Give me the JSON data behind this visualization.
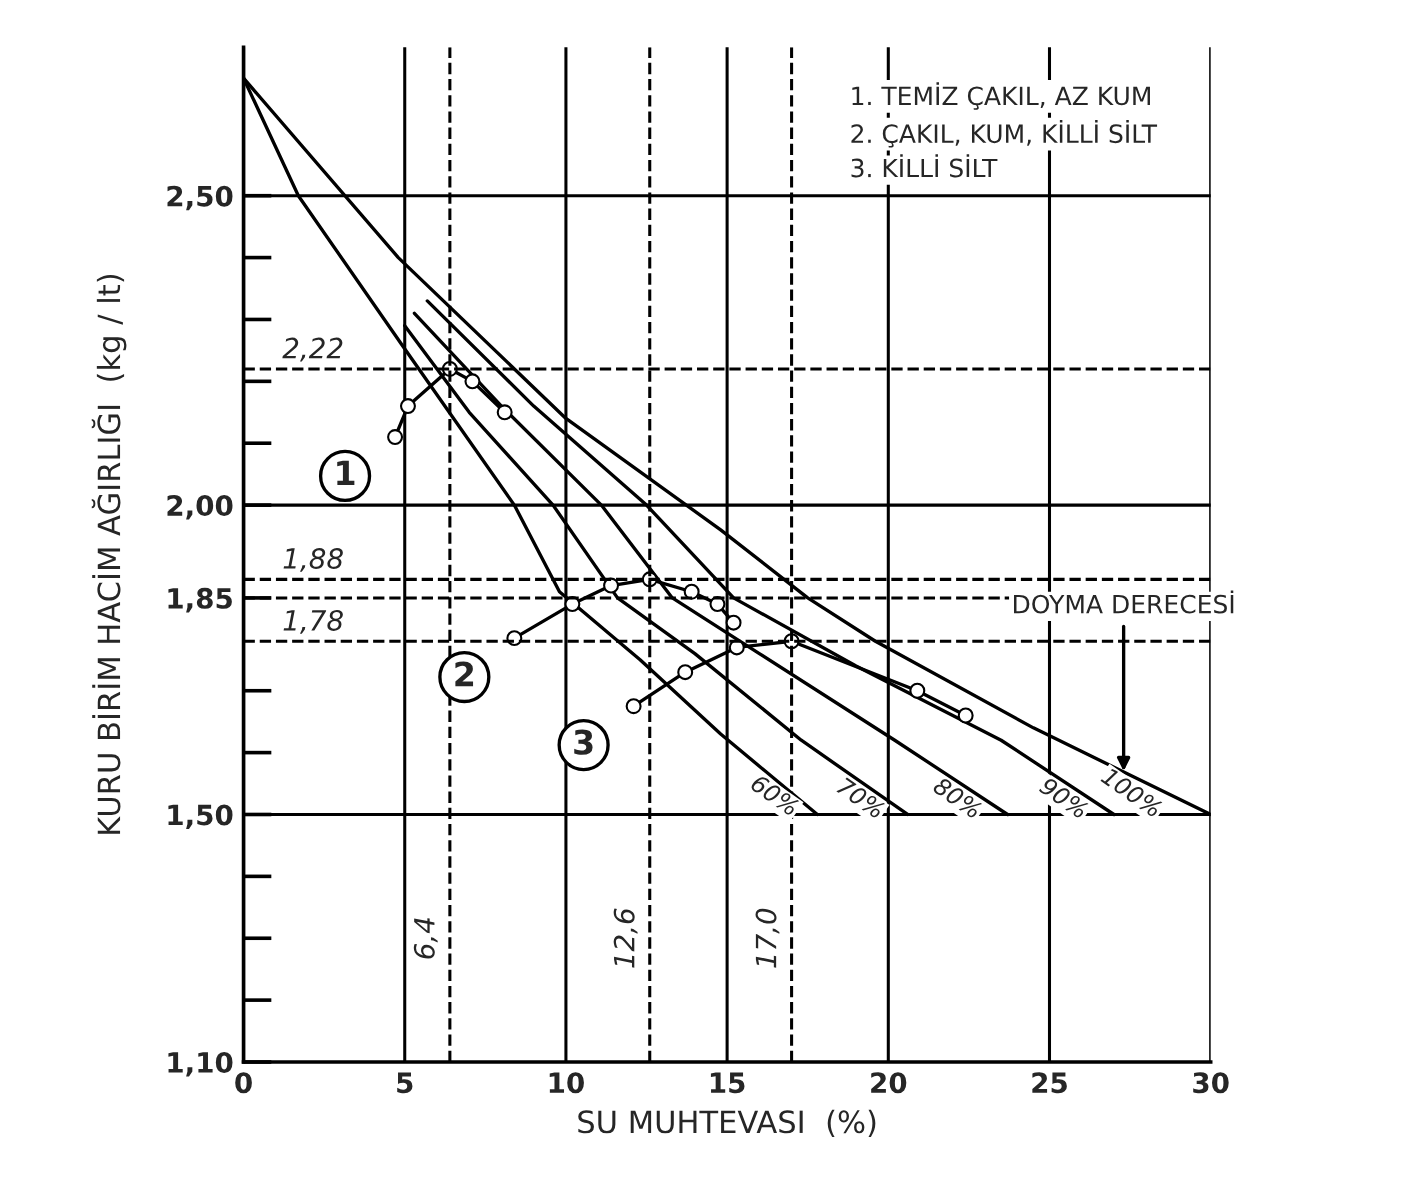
{
  "chart_data": {
    "type": "line",
    "xlabel": "SU MUHTEVASI  (%)",
    "ylabel": "KURU BİRİM HACİM AĞIRLIĞI  (kg / lt)",
    "xlim": [
      0,
      30
    ],
    "xticks": [
      0,
      5,
      10,
      15,
      20,
      25,
      30
    ],
    "ylim": [
      1.1,
      2.74
    ],
    "yticks": [
      {
        "value": 1.1,
        "label": "1,10"
      },
      {
        "value": 1.2,
        "label": null
      },
      {
        "value": 1.3,
        "label": null
      },
      {
        "value": 1.4,
        "label": null
      },
      {
        "value": 1.5,
        "label": "1,50"
      },
      {
        "value": 1.6,
        "label": null
      },
      {
        "value": 1.7,
        "label": null
      },
      {
        "value": 1.85,
        "label": "1,85"
      },
      {
        "value": 2.0,
        "label": "2,00"
      },
      {
        "value": 2.1,
        "label": null
      },
      {
        "value": 2.2,
        "label": null
      },
      {
        "value": 2.3,
        "label": null
      },
      {
        "value": 2.4,
        "label": null
      },
      {
        "value": 2.5,
        "label": "2,50"
      }
    ],
    "grid": "x",
    "legend": false,
    "line_style": "solid",
    "series": [
      {
        "name": "60%",
        "color": "#000000",
        "marker": "none",
        "x": [
          0,
          1.7,
          4.9,
          8.4,
          9.8,
          12.3,
          14.8,
          17.8
        ],
        "values": [
          2.69,
          2.5,
          2.26,
          2.0,
          1.86,
          1.75,
          1.63,
          1.5
        ]
      },
      {
        "name": "70%",
        "color": "#000000",
        "marker": "none",
        "x": [
          5.0,
          7.0,
          9.6,
          11.6,
          14.0,
          17.3,
          20.6
        ],
        "values": [
          2.29,
          2.15,
          2.0,
          1.85,
          1.76,
          1.62,
          1.5
        ]
      },
      {
        "name": "80%",
        "color": "#000000",
        "marker": "none",
        "x": [
          5.3,
          8.0,
          11.1,
          13.3,
          16.0,
          20.2,
          23.7
        ],
        "values": [
          2.31,
          2.16,
          2.0,
          1.85,
          1.76,
          1.62,
          1.5
        ]
      },
      {
        "name": "90%",
        "color": "#000000",
        "marker": "none",
        "x": [
          5.7,
          9.0,
          12.5,
          15.2,
          19.0,
          23.5,
          27.0
        ],
        "values": [
          2.33,
          2.16,
          2.0,
          1.85,
          1.74,
          1.62,
          1.5
        ]
      },
      {
        "name": "100%",
        "color": "#000000",
        "marker": "none",
        "x": [
          0,
          4.8,
          10.0,
          14.8,
          17.5,
          19.6,
          24.5,
          30
        ],
        "values": [
          2.69,
          2.4,
          2.14,
          1.96,
          1.85,
          1.78,
          1.64,
          1.5
        ]
      },
      {
        "name": "1",
        "color": "#000000",
        "marker": "circle",
        "x": [
          4.7,
          5.1,
          6.4,
          7.1,
          8.1
        ],
        "values": [
          2.11,
          2.16,
          2.22,
          2.2,
          2.15
        ]
      },
      {
        "name": "2",
        "color": "#000000",
        "marker": "circle",
        "x": [
          8.4,
          10.2,
          11.4,
          12.6,
          13.9,
          14.7,
          15.2
        ],
        "values": [
          1.785,
          1.84,
          1.87,
          1.88,
          1.86,
          1.84,
          1.81
        ]
      },
      {
        "name": "3",
        "color": "#000000",
        "marker": "circle",
        "x": [
          12.1,
          13.7,
          15.3,
          17.0,
          20.9,
          22.4
        ],
        "values": [
          1.675,
          1.73,
          1.77,
          1.78,
          1.7,
          1.66
        ]
      }
    ],
    "ref_lines": [
      {
        "axis": "y",
        "value": 1.5,
        "line_style": "solid"
      },
      {
        "axis": "y",
        "value": 2.0,
        "line_style": "solid"
      },
      {
        "axis": "y",
        "value": 2.5,
        "line_style": "solid"
      },
      {
        "axis": "y",
        "value": 2.22,
        "label": "2,22",
        "line_style": "dashed"
      },
      {
        "axis": "y",
        "value": 1.88,
        "label": "1,88",
        "line_style": "dashed"
      },
      {
        "axis": "y",
        "value": 1.85,
        "line_style": "dashed"
      },
      {
        "axis": "y",
        "value": 1.78,
        "label": "1,78",
        "line_style": "dashed"
      },
      {
        "axis": "x",
        "value": 6.4,
        "label": "6,4",
        "line_style": "dashed"
      },
      {
        "axis": "x",
        "value": 12.6,
        "label": "12,6",
        "line_style": "dashed"
      },
      {
        "axis": "x",
        "value": 17.0,
        "label": "17,0",
        "line_style": "dashed"
      }
    ],
    "annotations": [
      "1. TEMİZ ÇAKIL, AZ KUM",
      "2. ÇAKIL, KUM, KİLLİ SİLT",
      "3. KİLLİ SİLT",
      {
        "text": "DOYMA DERECESİ",
        "x": 27.3,
        "y": 1.57
      }
    ]
  }
}
